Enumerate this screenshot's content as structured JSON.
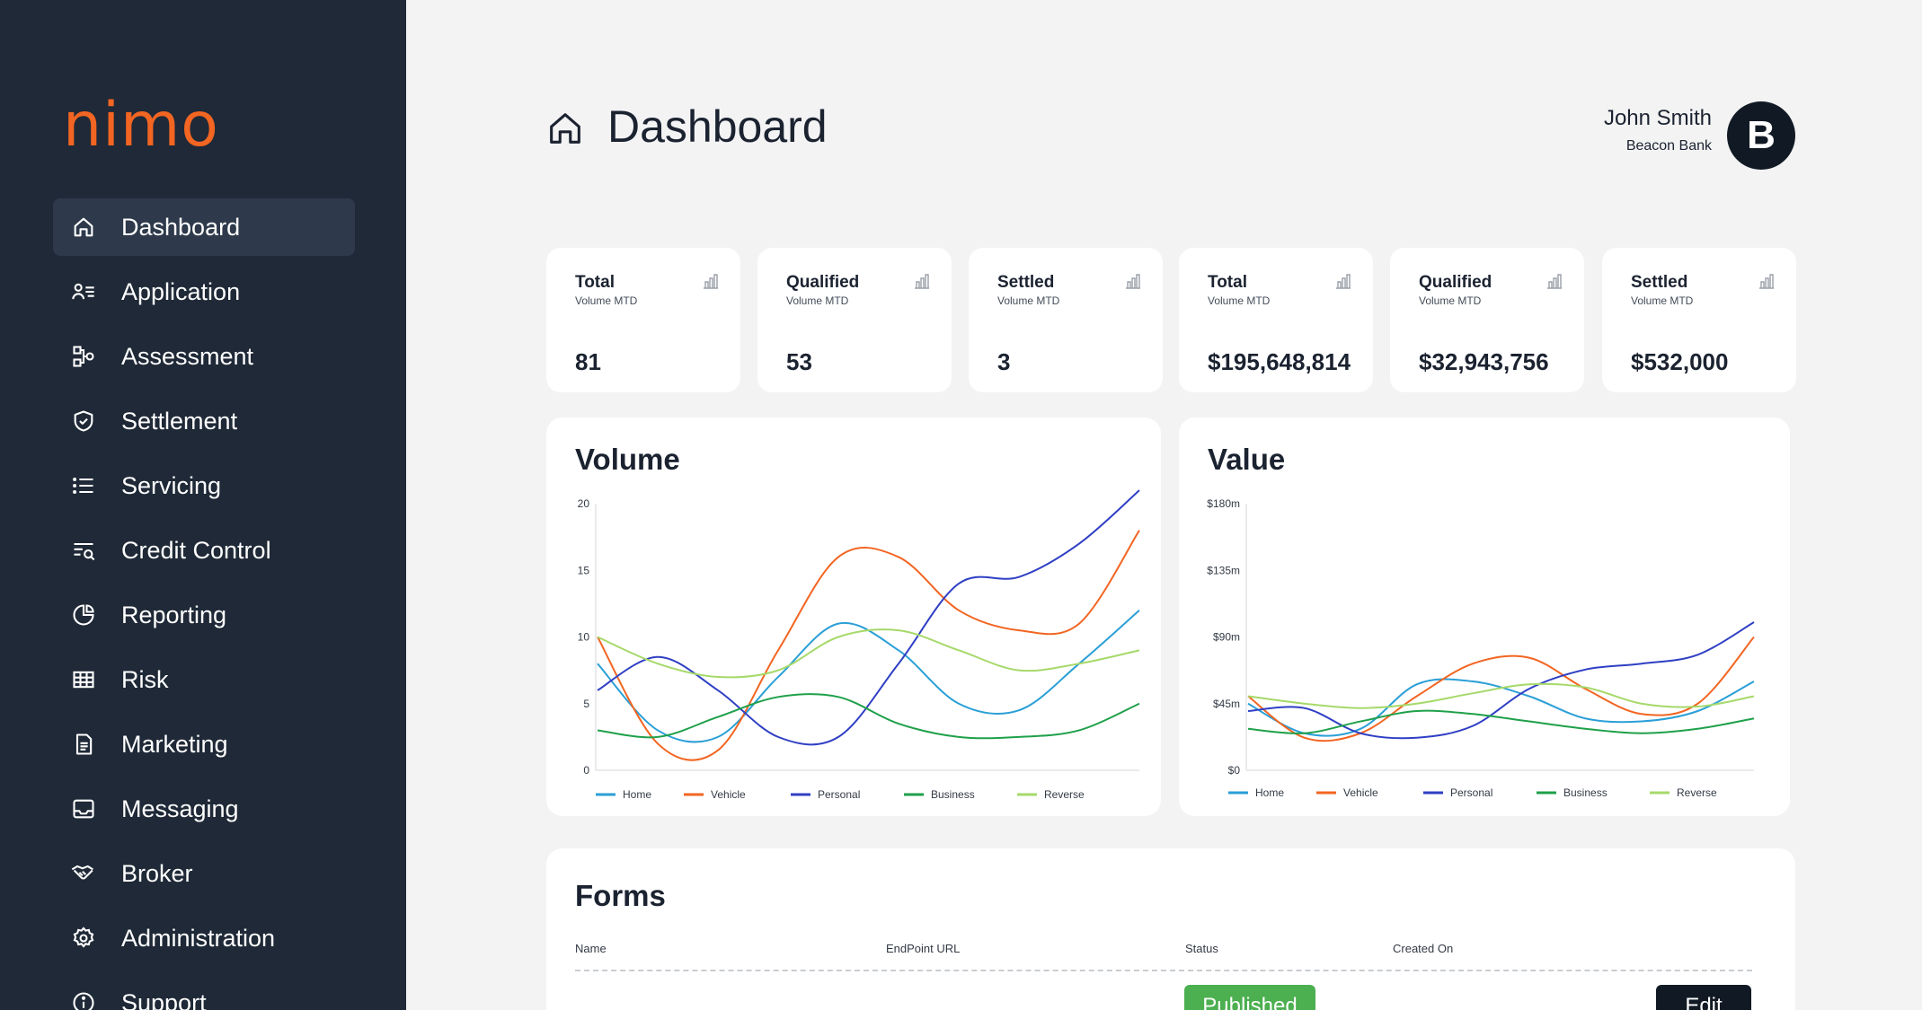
{
  "brand": {
    "logo_text": "nimo",
    "accent": "#f26522",
    "sidebar_bg": "#1f2937"
  },
  "sidebar": {
    "items": [
      {
        "label": "Dashboard",
        "icon": "home-icon",
        "active": true
      },
      {
        "label": "Application",
        "icon": "user-list-icon"
      },
      {
        "label": "Assessment",
        "icon": "flow-icon"
      },
      {
        "label": "Settlement",
        "icon": "shield-check-icon"
      },
      {
        "label": "Servicing",
        "icon": "list-icon"
      },
      {
        "label": "Credit Control",
        "icon": "list-search-icon"
      },
      {
        "label": "Reporting",
        "icon": "pie-icon"
      },
      {
        "label": "Risk",
        "icon": "table-icon"
      },
      {
        "label": "Marketing",
        "icon": "document-icon"
      },
      {
        "label": "Messaging",
        "icon": "inbox-icon"
      },
      {
        "label": "Broker",
        "icon": "handshake-icon"
      },
      {
        "label": "Administration",
        "icon": "gear-icon"
      },
      {
        "label": "Support",
        "icon": "info-icon"
      }
    ]
  },
  "header": {
    "title": "Dashboard",
    "user_name": "John Smith",
    "user_org": "Beacon Bank",
    "avatar_letter": "B"
  },
  "kpis": [
    {
      "title": "Total",
      "subtitle": "Volume MTD",
      "value": "81"
    },
    {
      "title": "Qualified",
      "subtitle": "Volume MTD",
      "value": "53"
    },
    {
      "title": "Settled",
      "subtitle": "Volume MTD",
      "value": "3"
    },
    {
      "title": "Total",
      "subtitle": "Volume MTD",
      "value": "$195,648,814"
    },
    {
      "title": "Qualified",
      "subtitle": "Volume MTD",
      "value": "$32,943,756"
    },
    {
      "title": "Settled",
      "subtitle": "Volume MTD",
      "value": "$532,000"
    }
  ],
  "chart_data": [
    {
      "type": "line",
      "title": "Volume",
      "ylim": [
        0,
        20
      ],
      "yticks": [
        "0",
        "5",
        "10",
        "15",
        "20"
      ],
      "legend_position": "bottom",
      "grid": false,
      "x": [
        0,
        1,
        2,
        3,
        4,
        5,
        6,
        7,
        8,
        9
      ],
      "series": [
        {
          "name": "Home",
          "color": "#2a9fd6",
          "values": [
            8,
            3,
            2.5,
            7,
            11,
            9,
            5,
            4.5,
            8,
            12
          ]
        },
        {
          "name": "Vehicle",
          "color": "#f26522",
          "values": [
            10,
            2,
            1.5,
            9,
            16,
            16,
            12,
            10.5,
            11,
            18
          ]
        },
        {
          "name": "Personal",
          "color": "#2f3fc4",
          "values": [
            6,
            8.5,
            6,
            2.5,
            2.5,
            8,
            14,
            14.5,
            17,
            21
          ]
        },
        {
          "name": "Business",
          "color": "#1fa04a",
          "values": [
            3,
            2.5,
            4,
            5.5,
            5.5,
            3.5,
            2.5,
            2.5,
            3,
            5
          ]
        },
        {
          "name": "Reverse",
          "color": "#a6d96a",
          "values": [
            10,
            8,
            7,
            7.5,
            10,
            10.5,
            9,
            7.5,
            8,
            9
          ]
        }
      ]
    },
    {
      "type": "line",
      "title": "Value",
      "ylim": [
        0,
        180
      ],
      "yticks": [
        "$0",
        "$45m",
        "$90m",
        "$135m",
        "$180m"
      ],
      "legend_position": "bottom",
      "grid": false,
      "x": [
        0,
        1,
        2,
        3,
        4,
        5,
        6,
        7,
        8,
        9
      ],
      "series": [
        {
          "name": "Home",
          "color": "#2a9fd6",
          "values": [
            45,
            25,
            28,
            58,
            60,
            50,
            35,
            33,
            40,
            60
          ]
        },
        {
          "name": "Vehicle",
          "color": "#f26522",
          "values": [
            50,
            22,
            25,
            50,
            72,
            76,
            55,
            38,
            45,
            90
          ]
        },
        {
          "name": "Personal",
          "color": "#2f3fc4",
          "values": [
            40,
            42,
            25,
            22,
            30,
            55,
            68,
            72,
            78,
            100
          ]
        },
        {
          "name": "Business",
          "color": "#1fa04a",
          "values": [
            28,
            25,
            33,
            40,
            38,
            33,
            28,
            25,
            28,
            35
          ]
        },
        {
          "name": "Reverse",
          "color": "#a6d96a",
          "values": [
            50,
            45,
            42,
            45,
            52,
            58,
            56,
            45,
            43,
            50
          ]
        }
      ]
    }
  ],
  "forms": {
    "title": "Forms",
    "columns": [
      "Name",
      "EndPoint URL",
      "Status",
      "Created On"
    ],
    "status_label": "Published",
    "edit_label": "Edit"
  }
}
